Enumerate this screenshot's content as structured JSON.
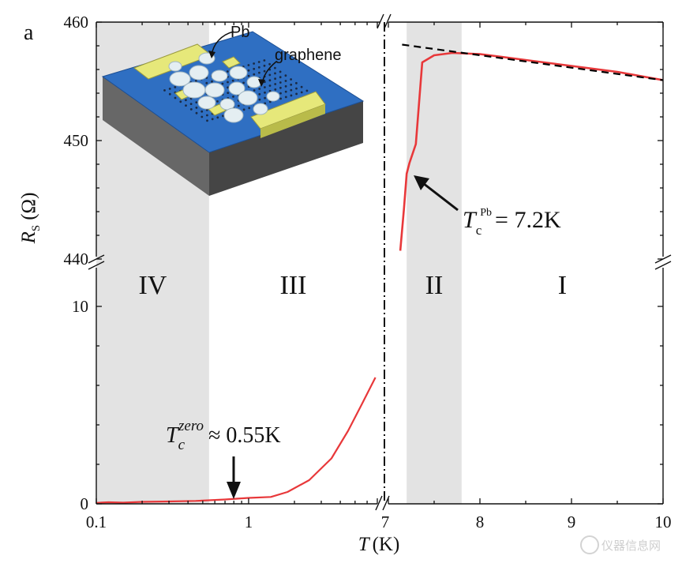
{
  "panel_label": "a",
  "chart_data": {
    "type": "line",
    "x_axis": {
      "label_symbol": "T",
      "label_unit": "(K)",
      "left_segment": {
        "scale": "log",
        "range": [
          0.1,
          7
        ],
        "ticks": [
          "0.1",
          "1",
          "7"
        ]
      },
      "right_segment": {
        "scale": "linear",
        "range": [
          7,
          10
        ],
        "ticks": [
          "7",
          "8",
          "9",
          "10"
        ]
      }
    },
    "y_axis": {
      "label_symbol": "R",
      "label_subscript": "S",
      "label_unit": "(Ω)",
      "lower_segment": {
        "range": [
          0,
          12
        ],
        "ticks": [
          "0",
          "10"
        ]
      },
      "upper_segment": {
        "range": [
          440,
          460
        ],
        "ticks": [
          "440",
          "450",
          "460"
        ]
      }
    },
    "regions": [
      {
        "label": "IV",
        "x_from": 0.1,
        "x_to": 0.55,
        "shaded": true
      },
      {
        "label": "III",
        "x_from": 0.55,
        "x_to": 7,
        "shaded": false
      },
      {
        "label": "II",
        "x_from": 7.2,
        "x_to": 7.8,
        "shaded": true
      },
      {
        "label": "I",
        "x_from": 7.8,
        "x_to": 10,
        "shaded": false
      }
    ],
    "series": [
      {
        "color": "#e8383a",
        "segment": "low_T",
        "points": [
          [
            0.1,
            0.05
          ],
          [
            0.12,
            0.08
          ],
          [
            0.15,
            0.06
          ],
          [
            0.2,
            0.1
          ],
          [
            0.3,
            0.12
          ],
          [
            0.45,
            0.15
          ],
          [
            0.55,
            0.18
          ],
          [
            0.7,
            0.22
          ],
          [
            1,
            0.3
          ],
          [
            1.4,
            0.35
          ],
          [
            1.8,
            0.6
          ],
          [
            2.5,
            1.2
          ],
          [
            3.5,
            2.3
          ],
          [
            4.5,
            3.7
          ],
          [
            5.5,
            5.0
          ],
          [
            6.8,
            6.4
          ]
        ]
      },
      {
        "color": "#e8383a",
        "segment": "high_T",
        "points": [
          [
            7.13,
            440.7
          ],
          [
            7.17,
            444.2
          ],
          [
            7.2,
            447.2
          ],
          [
            7.23,
            448.1
          ],
          [
            7.3,
            449.7
          ],
          [
            7.37,
            456.6
          ],
          [
            7.5,
            457.2
          ],
          [
            7.7,
            457.4
          ],
          [
            8.0,
            457.3
          ],
          [
            8.5,
            456.8
          ],
          [
            9.0,
            456.3
          ],
          [
            9.5,
            455.8
          ],
          [
            10.0,
            455.1
          ]
        ]
      },
      {
        "style": "dashed",
        "color": "#000000",
        "segment": "high_T",
        "points": [
          [
            7.15,
            458.1
          ],
          [
            10.0,
            455.1
          ]
        ]
      }
    ],
    "annotations": [
      {
        "symbol": "T",
        "subscript": "c",
        "superscript": "zero",
        "text": "≈ 0.55K",
        "points_to": [
          0.55,
          0.18
        ]
      },
      {
        "symbol": "T",
        "subscript": "c",
        "superscript": "Pb",
        "text": "= 7.2K",
        "points_to": [
          7.2,
          447.6
        ]
      }
    ],
    "inset": {
      "labels": [
        "Pb",
        "graphene"
      ]
    }
  },
  "watermark": "仪器信息网"
}
